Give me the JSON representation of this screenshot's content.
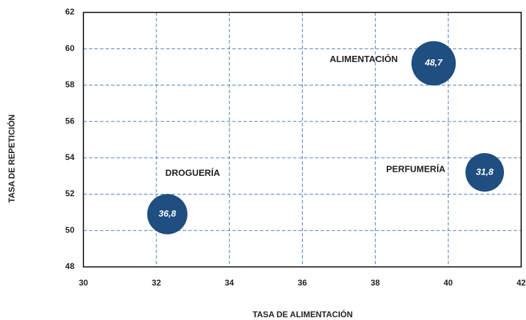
{
  "chart_data": {
    "type": "bubble",
    "xlabel": "TASA DE ALIMENTACIÓN",
    "ylabel": "TASA DE REPETICIÓN",
    "labels": [
      "ALIMENTACIÓN",
      "PERFUMERÍA",
      "DROGUERÍA"
    ],
    "x": [
      39.6,
      41.0,
      32.3
    ],
    "values": [
      59.2,
      53.2,
      50.9
    ],
    "sizes": [
      48.7,
      31.8,
      36.8
    ],
    "value_labels": [
      "48,7",
      "31,8",
      "36,8"
    ],
    "color": "#1f4e80",
    "xlim": [
      30,
      42
    ],
    "xticks": [
      30,
      32,
      34,
      36,
      38,
      40,
      42
    ],
    "ylim": [
      48,
      62
    ],
    "yticks": [
      48,
      50,
      52,
      54,
      56,
      58,
      60,
      62
    ],
    "grid": true
  }
}
